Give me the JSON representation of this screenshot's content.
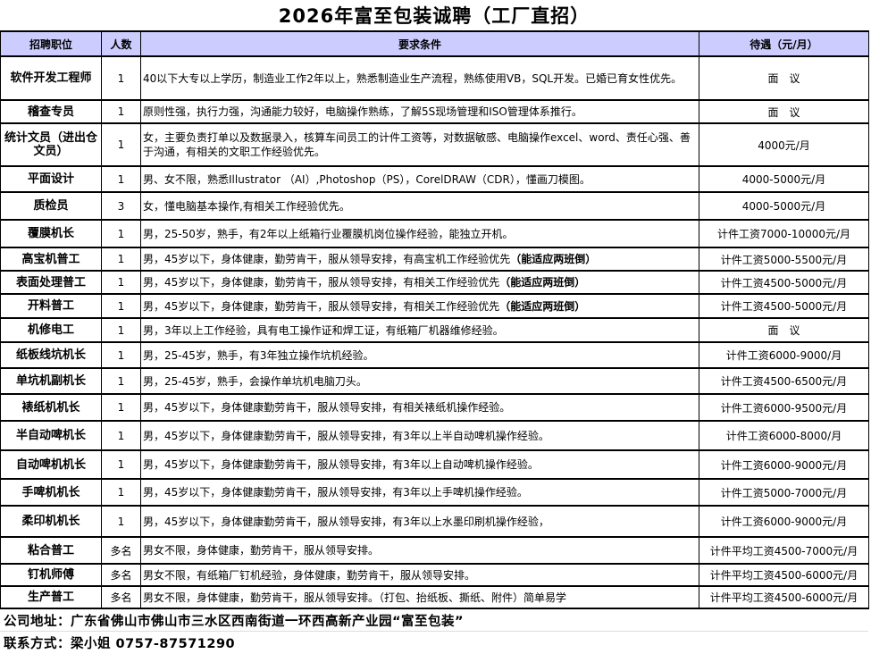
{
  "title": "2026年富至包装诚聘（工厂直招）",
  "headers": [
    "招聘职位",
    "人数",
    "要求条件",
    "待遇（元/月）"
  ],
  "rows": [
    {
      "pos": "软件开发工程师",
      "num": "1",
      "req": "40以下大专以上学历，制造业工作2年以上，熟悉制造业生产流程，熟练使用VB，SQL开发。已婚已育女性优先。",
      "bold": "",
      "pay": "面　议"
    },
    {
      "pos": "稽查专员",
      "num": "1",
      "req": "原则性强，执行力强，沟通能力较好，电脑操作熟练，了解5S现场管理和ISO管理体系推行。",
      "bold": "",
      "pay": "面　议"
    },
    {
      "pos": "统计文员（进出仓文员）",
      "num": "1",
      "req": "女，主要负责打单以及数据录入，核算车间员工的计件工资等，对数据敏感、电脑操作excel、word、责任心强、善于沟通，有相关的文职工作经验优先。",
      "bold": "",
      "pay": "4000元/月"
    },
    {
      "pos": "平面设计",
      "num": "1",
      "req": "男、女不限，熟悉Illustrator （AI）,Photoshop（PS），CorelDRAW（CDR），懂画刀模图。",
      "bold": "",
      "pay": "4000-5000元/月"
    },
    {
      "pos": "质检员",
      "num": "3",
      "req": "女，懂电脑基本操作,有相关工作经验优先。",
      "bold": "",
      "pay": "4000-5000元/月"
    },
    {
      "pos": "覆膜机长",
      "num": "1",
      "req": "男，25-50岁，熟手，有2年以上纸箱行业覆膜机岗位操作经验，能独立开机。",
      "bold": "",
      "pay": "计件工资7000-10000元/月"
    },
    {
      "pos": "高宝机普工",
      "num": "1",
      "req": "男，45岁以下，身体健康，勤劳肯干，服从领导安排，有高宝机工作经验优先",
      "bold": "（能适应两班倒）",
      "pay": "计件工资5000-5500元/月"
    },
    {
      "pos": "表面处理普工",
      "num": "1",
      "req": "男，45岁以下，身体健康，勤劳肯干，服从领导安排，有相关工作经验优先",
      "bold": "（能适应两班倒）",
      "pay": "计件工资4500-5000元/月"
    },
    {
      "pos": "开料普工",
      "num": "1",
      "req": "男，45岁以下，身体健康，勤劳肯干，服从领导安排，有相关工作经验优先",
      "bold": "（能适应两班倒）",
      "pay": "计件工资4500-5000元/月"
    },
    {
      "pos": "机修电工",
      "num": "1",
      "req": "男，3年以上工作经验，具有电工操作证和焊工证，有纸箱厂机器维修经验。",
      "bold": "",
      "pay": "面　议"
    },
    {
      "pos": "纸板线坑机长",
      "num": "1",
      "req": "男，25-45岁，熟手，有3年独立操作坑机经验。",
      "bold": "",
      "pay": "计件工资6000-9000/月"
    },
    {
      "pos": "单坑机副机长",
      "num": "1",
      "req": "男，25-45岁，熟手，会操作单坑机电脑刀头。",
      "bold": "",
      "pay": "计件工资4500-6500元/月"
    },
    {
      "pos": "裱纸机机长",
      "num": "1",
      "req": "男，45岁以下，身体健康勤劳肯干，服从领导安排，有相关裱纸机操作经验。",
      "bold": "",
      "pay": "计件工资6000-9500元/月"
    },
    {
      "pos": "半自动啤机长",
      "num": "1",
      "req": "男，45岁以下，身体健康勤劳肯干，服从领导安排，有3年以上半自动啤机操作经验。",
      "bold": "",
      "pay": "计件工资6000-8000/月"
    },
    {
      "pos": "自动啤机机长",
      "num": "1",
      "req": "男，45岁以下，身体健康勤劳肯干，服从领导安排，有3年以上自动啤机操作经验。",
      "bold": "",
      "pay": "计件工资6000-9000元/月"
    },
    {
      "pos": "手啤机机长",
      "num": "1",
      "req": "男，45岁以下，身体健康勤劳肯干，服从领导安排，有3年以上手啤机操作经验。",
      "bold": "",
      "pay": "计件工资5000-7000元/月"
    },
    {
      "pos": "柔印机机长",
      "num": "1",
      "req": "男，45岁以下，身体健康勤劳肯干，服从领导安排，有3年以上水墨印刷机操作经验，",
      "bold": "",
      "pay": "计件工资6000-9000元/月"
    },
    {
      "pos": "粘合普工",
      "num": "多名",
      "req": "男女不限，身体健康，勤劳肯干，服从领导安排。",
      "bold": "",
      "pay": "计件平均工资4500-7000元/月"
    },
    {
      "pos": "钉机师傅",
      "num": "多名",
      "req": "男女不限，有纸箱厂钉机经验，身体健康，勤劳肯干，服从领导安排。",
      "bold": "",
      "pay": "计件平均工资4500-6000元/月"
    },
    {
      "pos": "生产普工",
      "num": "多名",
      "req": "男女不限，身体健康，勤劳肯干，服从领导安排。（打包、抬纸板、撕纸、附件）简单易学",
      "bold": "",
      "pay": "计件平均工资4500-6000元/月"
    }
  ],
  "footer": {
    "address": "公司地址：广东省佛山市佛山市三水区西南街道一环西高新产业园“富至包装”",
    "contact": "联系方式：梁小姐 0757-87571290"
  },
  "colors": {
    "header_bg": "#ccccff"
  }
}
